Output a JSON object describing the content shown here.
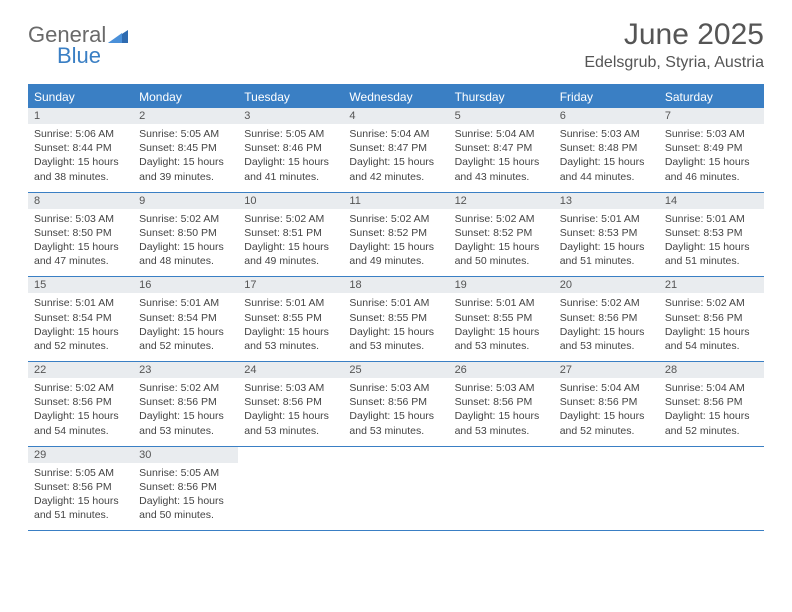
{
  "logo": {
    "word1": "General",
    "word2": "Blue"
  },
  "title": "June 2025",
  "location": "Edelsgrub, Styria, Austria",
  "colors": {
    "accent": "#3a7fc4",
    "daynum_bg": "#e9ecef",
    "text": "#444444",
    "header_text": "#555555",
    "bg": "#ffffff"
  },
  "fonts": {
    "title_size": 30,
    "subtitle_size": 16,
    "dow_size": 12,
    "daynum_size": 11,
    "body_size": 10.5
  },
  "days_of_week": [
    "Sunday",
    "Monday",
    "Tuesday",
    "Wednesday",
    "Thursday",
    "Friday",
    "Saturday"
  ],
  "weeks": [
    [
      {
        "n": "1",
        "sr": "Sunrise: 5:06 AM",
        "ss": "Sunset: 8:44 PM",
        "d1": "Daylight: 15 hours",
        "d2": "and 38 minutes."
      },
      {
        "n": "2",
        "sr": "Sunrise: 5:05 AM",
        "ss": "Sunset: 8:45 PM",
        "d1": "Daylight: 15 hours",
        "d2": "and 39 minutes."
      },
      {
        "n": "3",
        "sr": "Sunrise: 5:05 AM",
        "ss": "Sunset: 8:46 PM",
        "d1": "Daylight: 15 hours",
        "d2": "and 41 minutes."
      },
      {
        "n": "4",
        "sr": "Sunrise: 5:04 AM",
        "ss": "Sunset: 8:47 PM",
        "d1": "Daylight: 15 hours",
        "d2": "and 42 minutes."
      },
      {
        "n": "5",
        "sr": "Sunrise: 5:04 AM",
        "ss": "Sunset: 8:47 PM",
        "d1": "Daylight: 15 hours",
        "d2": "and 43 minutes."
      },
      {
        "n": "6",
        "sr": "Sunrise: 5:03 AM",
        "ss": "Sunset: 8:48 PM",
        "d1": "Daylight: 15 hours",
        "d2": "and 44 minutes."
      },
      {
        "n": "7",
        "sr": "Sunrise: 5:03 AM",
        "ss": "Sunset: 8:49 PM",
        "d1": "Daylight: 15 hours",
        "d2": "and 46 minutes."
      }
    ],
    [
      {
        "n": "8",
        "sr": "Sunrise: 5:03 AM",
        "ss": "Sunset: 8:50 PM",
        "d1": "Daylight: 15 hours",
        "d2": "and 47 minutes."
      },
      {
        "n": "9",
        "sr": "Sunrise: 5:02 AM",
        "ss": "Sunset: 8:50 PM",
        "d1": "Daylight: 15 hours",
        "d2": "and 48 minutes."
      },
      {
        "n": "10",
        "sr": "Sunrise: 5:02 AM",
        "ss": "Sunset: 8:51 PM",
        "d1": "Daylight: 15 hours",
        "d2": "and 49 minutes."
      },
      {
        "n": "11",
        "sr": "Sunrise: 5:02 AM",
        "ss": "Sunset: 8:52 PM",
        "d1": "Daylight: 15 hours",
        "d2": "and 49 minutes."
      },
      {
        "n": "12",
        "sr": "Sunrise: 5:02 AM",
        "ss": "Sunset: 8:52 PM",
        "d1": "Daylight: 15 hours",
        "d2": "and 50 minutes."
      },
      {
        "n": "13",
        "sr": "Sunrise: 5:01 AM",
        "ss": "Sunset: 8:53 PM",
        "d1": "Daylight: 15 hours",
        "d2": "and 51 minutes."
      },
      {
        "n": "14",
        "sr": "Sunrise: 5:01 AM",
        "ss": "Sunset: 8:53 PM",
        "d1": "Daylight: 15 hours",
        "d2": "and 51 minutes."
      }
    ],
    [
      {
        "n": "15",
        "sr": "Sunrise: 5:01 AM",
        "ss": "Sunset: 8:54 PM",
        "d1": "Daylight: 15 hours",
        "d2": "and 52 minutes."
      },
      {
        "n": "16",
        "sr": "Sunrise: 5:01 AM",
        "ss": "Sunset: 8:54 PM",
        "d1": "Daylight: 15 hours",
        "d2": "and 52 minutes."
      },
      {
        "n": "17",
        "sr": "Sunrise: 5:01 AM",
        "ss": "Sunset: 8:55 PM",
        "d1": "Daylight: 15 hours",
        "d2": "and 53 minutes."
      },
      {
        "n": "18",
        "sr": "Sunrise: 5:01 AM",
        "ss": "Sunset: 8:55 PM",
        "d1": "Daylight: 15 hours",
        "d2": "and 53 minutes."
      },
      {
        "n": "19",
        "sr": "Sunrise: 5:01 AM",
        "ss": "Sunset: 8:55 PM",
        "d1": "Daylight: 15 hours",
        "d2": "and 53 minutes."
      },
      {
        "n": "20",
        "sr": "Sunrise: 5:02 AM",
        "ss": "Sunset: 8:56 PM",
        "d1": "Daylight: 15 hours",
        "d2": "and 53 minutes."
      },
      {
        "n": "21",
        "sr": "Sunrise: 5:02 AM",
        "ss": "Sunset: 8:56 PM",
        "d1": "Daylight: 15 hours",
        "d2": "and 54 minutes."
      }
    ],
    [
      {
        "n": "22",
        "sr": "Sunrise: 5:02 AM",
        "ss": "Sunset: 8:56 PM",
        "d1": "Daylight: 15 hours",
        "d2": "and 54 minutes."
      },
      {
        "n": "23",
        "sr": "Sunrise: 5:02 AM",
        "ss": "Sunset: 8:56 PM",
        "d1": "Daylight: 15 hours",
        "d2": "and 53 minutes."
      },
      {
        "n": "24",
        "sr": "Sunrise: 5:03 AM",
        "ss": "Sunset: 8:56 PM",
        "d1": "Daylight: 15 hours",
        "d2": "and 53 minutes."
      },
      {
        "n": "25",
        "sr": "Sunrise: 5:03 AM",
        "ss": "Sunset: 8:56 PM",
        "d1": "Daylight: 15 hours",
        "d2": "and 53 minutes."
      },
      {
        "n": "26",
        "sr": "Sunrise: 5:03 AM",
        "ss": "Sunset: 8:56 PM",
        "d1": "Daylight: 15 hours",
        "d2": "and 53 minutes."
      },
      {
        "n": "27",
        "sr": "Sunrise: 5:04 AM",
        "ss": "Sunset: 8:56 PM",
        "d1": "Daylight: 15 hours",
        "d2": "and 52 minutes."
      },
      {
        "n": "28",
        "sr": "Sunrise: 5:04 AM",
        "ss": "Sunset: 8:56 PM",
        "d1": "Daylight: 15 hours",
        "d2": "and 52 minutes."
      }
    ],
    [
      {
        "n": "29",
        "sr": "Sunrise: 5:05 AM",
        "ss": "Sunset: 8:56 PM",
        "d1": "Daylight: 15 hours",
        "d2": "and 51 minutes."
      },
      {
        "n": "30",
        "sr": "Sunrise: 5:05 AM",
        "ss": "Sunset: 8:56 PM",
        "d1": "Daylight: 15 hours",
        "d2": "and 50 minutes."
      },
      {
        "empty": true
      },
      {
        "empty": true
      },
      {
        "empty": true
      },
      {
        "empty": true
      },
      {
        "empty": true
      }
    ]
  ]
}
